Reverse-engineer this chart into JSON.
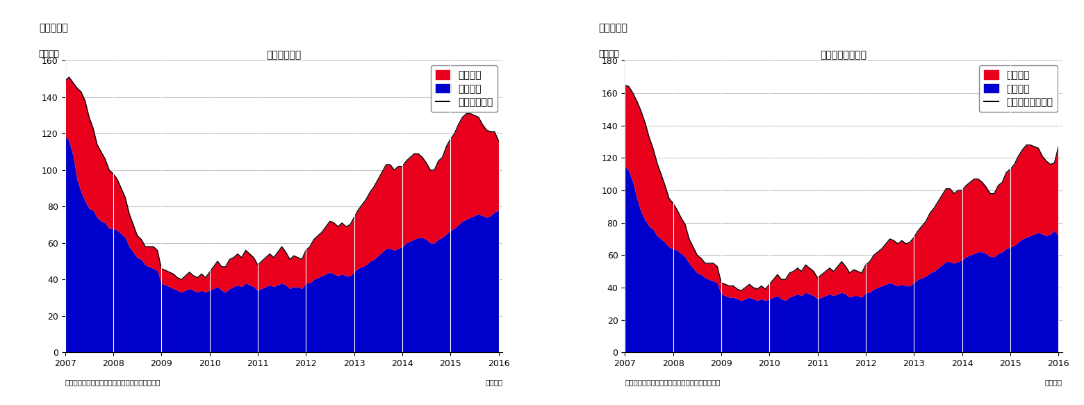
{
  "chart1": {
    "title": "住宅着工件数",
    "panel_label": "（図表１）",
    "ylabel": "（万件）",
    "xlabel_right": "（月次）",
    "source": "（資料）センサス局よりニッセイ基礎研究所作成",
    "legend_line": "住宅着工件数",
    "legend_red": "集合住宅",
    "legend_blue": "一戸建て",
    "ylim": [
      0,
      160
    ],
    "yticks": [
      0,
      20,
      40,
      60,
      80,
      100,
      120,
      140,
      160
    ]
  },
  "chart2": {
    "title": "住宅着工許可件数",
    "panel_label": "（図表２）",
    "ylabel": "（万件）",
    "xlabel_right": "（月次）",
    "source": "（資料）センサス局よりニッセイ基礎研究所作成",
    "legend_line": "住宅建築許可件数",
    "legend_red": "集合住宅",
    "legend_blue": "一戸建て",
    "ylim": [
      0,
      180
    ],
    "yticks": [
      0,
      20,
      40,
      60,
      80,
      100,
      120,
      140,
      160,
      180
    ]
  },
  "colors": {
    "red": "#e8001c",
    "blue": "#0000cc",
    "line": "#000000",
    "grid": "#aaaaaa",
    "white_vline": "#ffffff",
    "bg": "#ffffff"
  },
  "chart1_blue": [
    119,
    116,
    108,
    95,
    88,
    83,
    79,
    78,
    74,
    72,
    71,
    68,
    68,
    67,
    65,
    63,
    58,
    55,
    52,
    51,
    48,
    47,
    46,
    45,
    38,
    37,
    36,
    35,
    34,
    33,
    34,
    35,
    34,
    33,
    34,
    33,
    34,
    35,
    36,
    34,
    33,
    35,
    36,
    37,
    36,
    38,
    37,
    36,
    34,
    35,
    36,
    37,
    36,
    37,
    38,
    37,
    35,
    36,
    36,
    35,
    38,
    38,
    40,
    41,
    42,
    43,
    44,
    43,
    42,
    43,
    42,
    42,
    44,
    46,
    47,
    48,
    50,
    51,
    53,
    55,
    57,
    57,
    56,
    57,
    58,
    60,
    61,
    62,
    63,
    63,
    62,
    60,
    60,
    62,
    63,
    65,
    67,
    68,
    70,
    72,
    73,
    74,
    75,
    76,
    75,
    74,
    75,
    77,
    78
  ],
  "chart1_red": [
    30,
    35,
    40,
    50,
    55,
    55,
    50,
    45,
    40,
    38,
    35,
    32,
    30,
    28,
    25,
    22,
    18,
    15,
    12,
    11,
    10,
    11,
    12,
    11,
    8,
    8,
    8,
    8,
    7,
    7,
    8,
    9,
    8,
    8,
    9,
    8,
    10,
    12,
    14,
    13,
    14,
    16,
    16,
    17,
    16,
    18,
    17,
    16,
    14,
    15,
    16,
    17,
    16,
    18,
    20,
    18,
    16,
    17,
    16,
    16,
    18,
    20,
    22,
    23,
    24,
    26,
    28,
    28,
    27,
    28,
    27,
    28,
    30,
    32,
    34,
    36,
    38,
    40,
    42,
    44,
    46,
    46,
    44,
    45,
    44,
    45,
    46,
    47,
    46,
    44,
    42,
    40,
    40,
    43,
    44,
    48,
    50,
    52,
    55,
    57,
    58,
    57,
    55,
    53,
    50,
    48,
    46,
    44,
    38
  ],
  "chart2_blue": [
    115,
    112,
    105,
    95,
    87,
    82,
    78,
    76,
    72,
    70,
    68,
    65,
    64,
    63,
    61,
    59,
    55,
    52,
    49,
    48,
    46,
    45,
    44,
    43,
    36,
    35,
    34,
    34,
    33,
    32,
    33,
    34,
    33,
    32,
    33,
    32,
    33,
    34,
    35,
    33,
    32,
    34,
    35,
    36,
    35,
    37,
    36,
    35,
    33,
    34,
    35,
    36,
    35,
    36,
    37,
    36,
    34,
    35,
    35,
    34,
    37,
    37,
    39,
    40,
    41,
    42,
    43,
    42,
    41,
    42,
    41,
    41,
    43,
    45,
    46,
    47,
    49,
    50,
    52,
    54,
    56,
    56,
    55,
    56,
    57,
    59,
    60,
    61,
    62,
    62,
    61,
    59,
    59,
    61,
    62,
    64,
    65,
    66,
    68,
    70,
    71,
    72,
    73,
    74,
    73,
    72,
    73,
    75,
    72
  ],
  "chart2_red": [
    50,
    52,
    55,
    60,
    62,
    60,
    55,
    50,
    45,
    40,
    35,
    30,
    28,
    25,
    22,
    20,
    15,
    13,
    11,
    10,
    9,
    10,
    11,
    10,
    7,
    7,
    7,
    7,
    6,
    6,
    7,
    8,
    7,
    7,
    8,
    7,
    9,
    11,
    13,
    12,
    13,
    15,
    15,
    16,
    15,
    17,
    16,
    15,
    13,
    14,
    15,
    16,
    15,
    17,
    19,
    17,
    15,
    16,
    15,
    15,
    17,
    19,
    21,
    22,
    23,
    25,
    27,
    27,
    26,
    27,
    26,
    27,
    28,
    30,
    32,
    34,
    37,
    39,
    41,
    43,
    45,
    45,
    43,
    44,
    43,
    44,
    45,
    46,
    45,
    43,
    41,
    39,
    39,
    42,
    43,
    47,
    48,
    50,
    53,
    55,
    57,
    56,
    54,
    52,
    48,
    46,
    43,
    42,
    55
  ]
}
